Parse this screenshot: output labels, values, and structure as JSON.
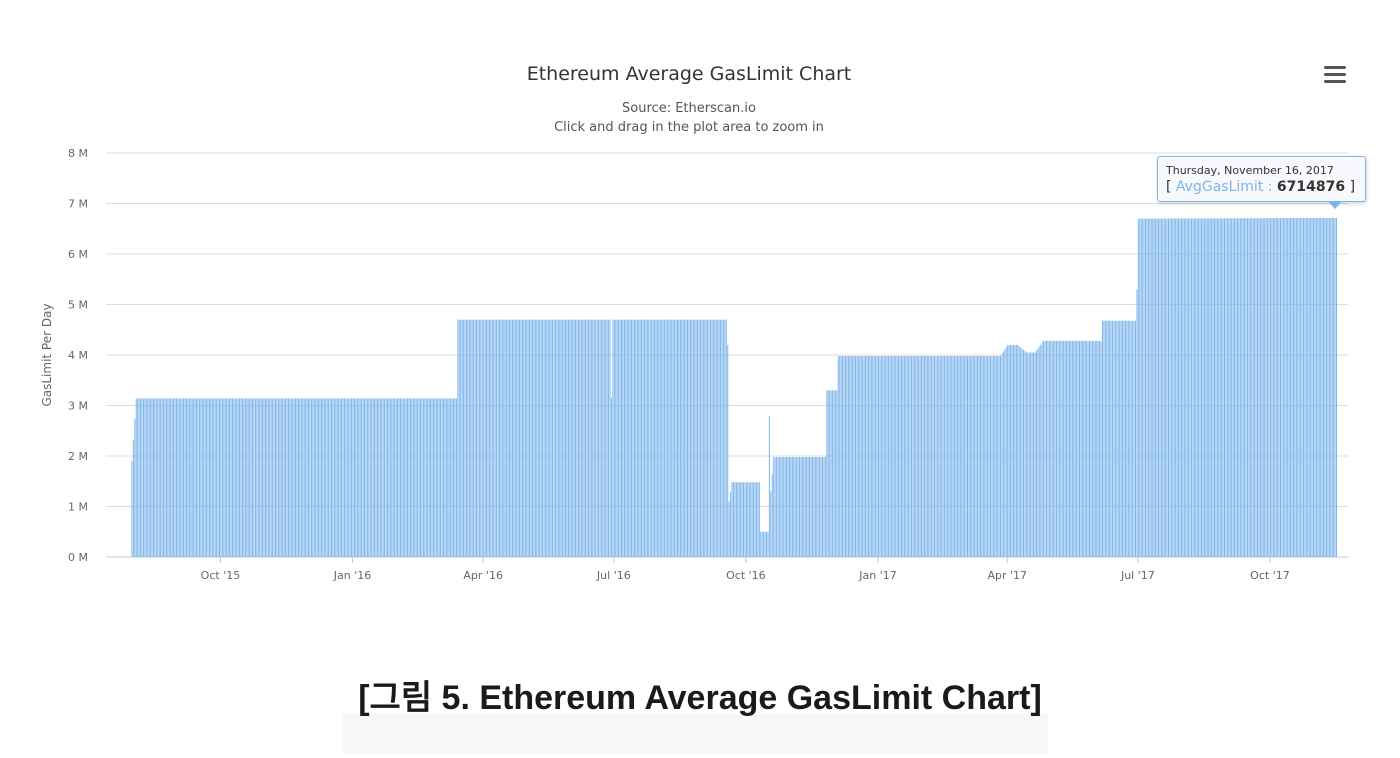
{
  "chart_data": {
    "type": "bar",
    "title": "Ethereum Average GasLimit Chart",
    "subtitle_lines": [
      "Source: Etherscan.io",
      "Click and drag in the plot area to zoom in"
    ],
    "ylabel": "GasLimit Per Day",
    "xlabel": "",
    "ylim": [
      0,
      8000000
    ],
    "y_ticks": [
      {
        "value": 0,
        "label": "0 M"
      },
      {
        "value": 1000000,
        "label": "1 M"
      },
      {
        "value": 2000000,
        "label": "2 M"
      },
      {
        "value": 3000000,
        "label": "3 M"
      },
      {
        "value": 4000000,
        "label": "4 M"
      },
      {
        "value": 5000000,
        "label": "5 M"
      },
      {
        "value": 6000000,
        "label": "6 M"
      },
      {
        "value": 7000000,
        "label": "7 M"
      },
      {
        "value": 8000000,
        "label": "8 M"
      }
    ],
    "x_range": [
      "2015-07-30",
      "2017-11-16"
    ],
    "x_ticks": [
      {
        "date": "2015-10-01",
        "label": "Oct '15"
      },
      {
        "date": "2016-01-01",
        "label": "Jan '16"
      },
      {
        "date": "2016-04-01",
        "label": "Apr '16"
      },
      {
        "date": "2016-07-01",
        "label": "Jul '16"
      },
      {
        "date": "2016-10-01",
        "label": "Oct '16"
      },
      {
        "date": "2017-01-01",
        "label": "Jan '17"
      },
      {
        "date": "2017-04-01",
        "label": "Apr '17"
      },
      {
        "date": "2017-07-01",
        "label": "Jul '17"
      },
      {
        "date": "2017-10-01",
        "label": "Oct '17"
      }
    ],
    "grid": true,
    "series": [
      {
        "name": "AvgGasLimit",
        "color": "#7cb5ec",
        "values": [
          [
            "2015-07-30",
            0
          ],
          [
            "2015-07-31",
            1900000
          ],
          [
            "2015-08-03",
            3140000
          ],
          [
            "2016-03-13",
            3140000
          ],
          [
            "2016-03-14",
            4700000
          ],
          [
            "2016-06-28",
            4700000
          ],
          [
            "2016-06-29",
            3150000
          ],
          [
            "2016-06-30",
            4700000
          ],
          [
            "2016-09-17",
            4700000
          ],
          [
            "2016-09-18",
            4200000
          ],
          [
            "2016-09-19",
            1100000
          ],
          [
            "2016-09-21",
            1480000
          ],
          [
            "2016-10-10",
            1480000
          ],
          [
            "2016-10-11",
            500000
          ],
          [
            "2016-10-16",
            500000
          ],
          [
            "2016-10-17",
            2800000
          ],
          [
            "2016-10-18",
            1300000
          ],
          [
            "2016-10-20",
            1980000
          ],
          [
            "2016-11-25",
            1980000
          ],
          [
            "2016-11-26",
            3300000
          ],
          [
            "2016-12-03",
            3300000
          ],
          [
            "2016-12-04",
            3980000
          ],
          [
            "2017-03-27",
            3980000
          ],
          [
            "2017-04-01",
            4200000
          ],
          [
            "2017-04-08",
            4200000
          ],
          [
            "2017-04-14",
            4050000
          ],
          [
            "2017-04-20",
            4050000
          ],
          [
            "2017-04-26",
            4280000
          ],
          [
            "2017-06-05",
            4280000
          ],
          [
            "2017-06-06",
            4680000
          ],
          [
            "2017-06-29",
            4680000
          ],
          [
            "2017-06-30",
            5300000
          ],
          [
            "2017-07-01",
            6700000
          ],
          [
            "2017-11-16",
            6714876
          ]
        ]
      }
    ],
    "tooltip": {
      "date": "Thursday, November 16, 2017",
      "series": "AvgGasLimit",
      "value": "6714876",
      "open_bracket": "[",
      "separator": ":",
      "close_bracket": "]"
    }
  },
  "caption": "[그림 5. Ethereum Average GasLimit Chart]"
}
